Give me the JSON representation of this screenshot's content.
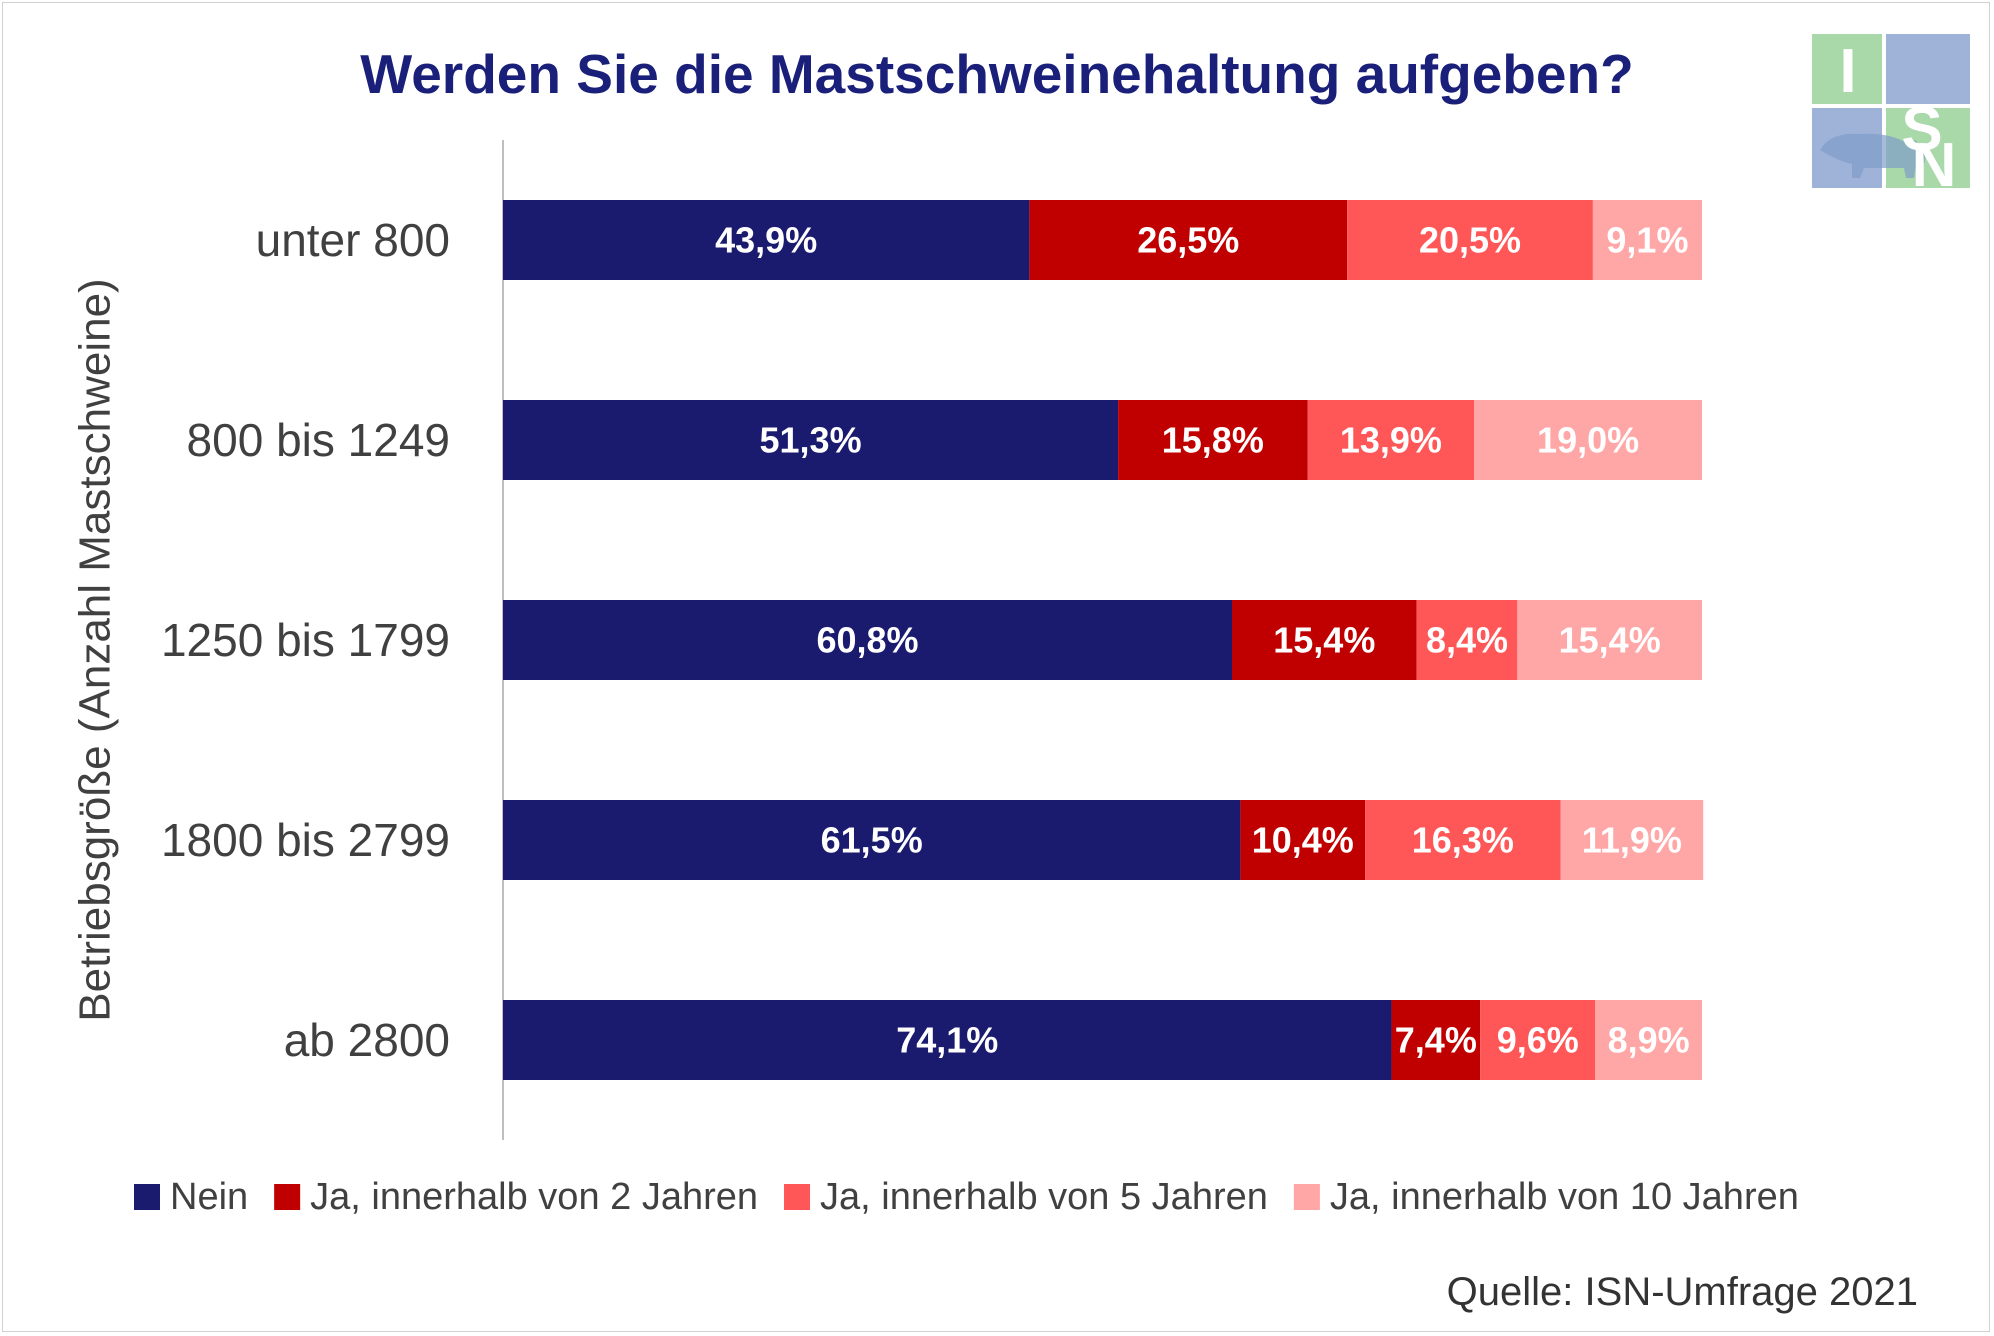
{
  "title": "Werden Sie die Mastschweinehaltung aufgeben?",
  "source": "Quelle: ISN-Umfrage 2021",
  "logo_text": "ISN",
  "colors": {
    "title": "#1a1f7a",
    "axis": "#bfbfbf",
    "label": "#404040"
  },
  "chart_data": {
    "type": "bar",
    "orientation": "horizontal",
    "stacked": true,
    "ylabel": "Betriebsgröße (Anzahl Mastschweine)",
    "xlabel": "",
    "categories": [
      "unter 800",
      "800 bis 1249",
      "1250 bis 1799",
      "1800 bis 2799",
      "ab 2800"
    ],
    "series": [
      {
        "name": "Nein",
        "color": "#1a1a6e",
        "values": [
          43.9,
          51.3,
          60.8,
          61.5,
          74.1
        ],
        "labels": [
          "43,9%",
          "51,3%",
          "60,8%",
          "61,5%",
          "74,1%"
        ]
      },
      {
        "name": "Ja, innerhalb von 2 Jahren",
        "color": "#c00000",
        "values": [
          26.5,
          15.8,
          15.4,
          10.4,
          7.4
        ],
        "labels": [
          "26,5%",
          "15,8%",
          "15,4%",
          "10,4%",
          "7,4%"
        ]
      },
      {
        "name": "Ja, innerhalb von 5 Jahren",
        "color": "#ff5757",
        "values": [
          20.5,
          13.9,
          8.4,
          16.3,
          9.6
        ],
        "labels": [
          "20,5%",
          "13,9%",
          "8,4%",
          "16,3%",
          "9,6%"
        ]
      },
      {
        "name": "Ja, innerhalb von 10 Jahren",
        "color": "#ffa6a6",
        "values": [
          9.1,
          19.0,
          15.4,
          11.9,
          8.9
        ],
        "labels": [
          "9,1%",
          "19,0%",
          "15,4%",
          "11,9%",
          "8,9%"
        ]
      }
    ],
    "xlim": [
      0,
      100
    ],
    "legend": "bottom",
    "grid": false
  }
}
